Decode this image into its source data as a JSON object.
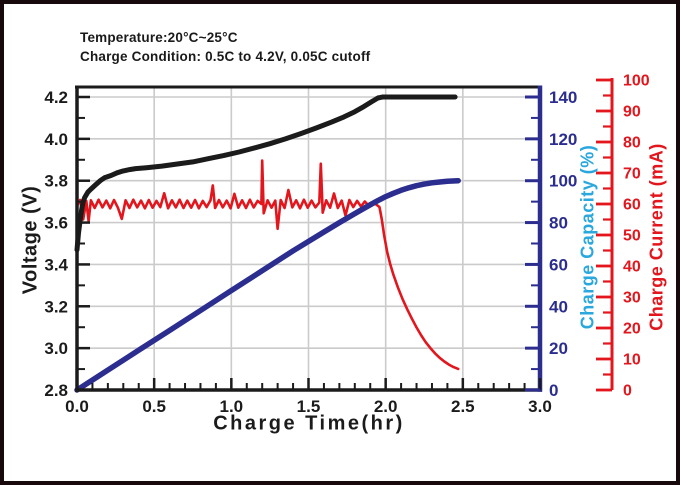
{
  "colors": {
    "black": "#1b1b1b",
    "navy": "#2b2e8f",
    "red": "#e2161c",
    "cyan": "#2aa7dd",
    "grid": "#cbcbcb",
    "background": "#ffffff",
    "frame": "#17090c"
  },
  "header": {
    "line1": "Temperature:20°C~25°C",
    "line2": "Charge Condition: 0.5C to 4.2V, 0.05C cutoff"
  },
  "chart_data": {
    "type": "line",
    "grid": "on",
    "legend": "none",
    "axes": {
      "x": {
        "title": "Charge Time(hr)",
        "min": 0,
        "max": 3,
        "ticks": [
          0,
          0.5,
          1,
          1.5,
          2,
          2.5,
          3
        ],
        "tick_labels": [
          "0.0",
          "0.5",
          "1.0",
          "1.5",
          "2.0",
          "2.5",
          "3.0"
        ],
        "minor_step": 0.1,
        "gridlines": [
          0.5,
          1,
          1.5,
          2,
          2.5
        ]
      },
      "voltage": {
        "title": "Voltage (V)",
        "side": "left",
        "min": 2.8,
        "max": 4.2,
        "ticks": [
          2.8,
          3,
          3.2,
          3.4,
          3.6,
          3.8,
          4,
          4.2
        ],
        "tick_labels": [
          "2.8",
          "3.0",
          "3.2",
          "3.4",
          "3.6",
          "3.8",
          "4.0",
          "4.2"
        ],
        "minor_step": 0.1,
        "gridlines": [
          3,
          3.2,
          3.4,
          3.6,
          3.8,
          4,
          4.2
        ]
      },
      "capacity": {
        "title": "Charge Capacity (%)",
        "side": "right",
        "min": 0,
        "max": 140,
        "ticks": [
          0,
          20,
          40,
          60,
          80,
          100,
          120,
          140
        ],
        "tick_labels": [
          "0",
          "20",
          "40",
          "60",
          "80",
          "100",
          "120",
          "140"
        ],
        "minor_step": 10
      },
      "current": {
        "title": "Charge Current (mA)",
        "side": "far-right",
        "min": 0,
        "max": 100,
        "ticks": [
          0,
          10,
          20,
          30,
          40,
          50,
          60,
          70,
          80,
          90,
          100
        ],
        "tick_labels": [
          "0",
          "10",
          "20",
          "30",
          "40",
          "50",
          "60",
          "70",
          "80",
          "90",
          "100"
        ],
        "minor_step": 5
      }
    },
    "series": [
      {
        "id": "current-curve",
        "name": "Charge Current",
        "axis": "current",
        "color": "red",
        "width": 2.6,
        "points": [
          [
            0,
            59.5
          ],
          [
            0.02,
            61.3
          ],
          [
            0.04,
            55
          ],
          [
            0.06,
            61
          ],
          [
            0.075,
            54.5
          ],
          [
            0.09,
            61.2
          ],
          [
            0.115,
            58.7
          ],
          [
            0.14,
            61.4
          ],
          [
            0.165,
            58.9
          ],
          [
            0.19,
            61.1
          ],
          [
            0.215,
            58.6
          ],
          [
            0.24,
            61.3
          ],
          [
            0.265,
            58.8
          ],
          [
            0.29,
            55.2
          ],
          [
            0.315,
            61.2
          ],
          [
            0.34,
            58.7
          ],
          [
            0.365,
            61.4
          ],
          [
            0.39,
            58.9
          ],
          [
            0.415,
            61.1
          ],
          [
            0.44,
            58.6
          ],
          [
            0.465,
            61.3
          ],
          [
            0.49,
            58.8
          ],
          [
            0.515,
            61
          ],
          [
            0.54,
            59
          ],
          [
            0.565,
            63.5
          ],
          [
            0.59,
            58.6
          ],
          [
            0.615,
            61.2
          ],
          [
            0.64,
            58.9
          ],
          [
            0.665,
            61.4
          ],
          [
            0.69,
            58.7
          ],
          [
            0.715,
            61.1
          ],
          [
            0.74,
            58.8
          ],
          [
            0.765,
            61.3
          ],
          [
            0.79,
            58.6
          ],
          [
            0.815,
            61
          ],
          [
            0.84,
            59
          ],
          [
            0.865,
            61.2
          ],
          [
            0.88,
            66
          ],
          [
            0.895,
            58.7
          ],
          [
            0.92,
            61.3
          ],
          [
            0.945,
            58.9
          ],
          [
            0.97,
            61.1
          ],
          [
            0.995,
            58.6
          ],
          [
            1.02,
            63.3
          ],
          [
            1.045,
            58.8
          ],
          [
            1.07,
            61.2
          ],
          [
            1.095,
            58.7
          ],
          [
            1.12,
            61.4
          ],
          [
            1.145,
            58.9
          ],
          [
            1.17,
            61
          ],
          [
            1.195,
            60
          ],
          [
            1.2,
            74
          ],
          [
            1.21,
            57
          ],
          [
            1.235,
            61.2
          ],
          [
            1.26,
            58.8
          ],
          [
            1.285,
            61.1
          ],
          [
            1.3,
            52
          ],
          [
            1.32,
            61.3
          ],
          [
            1.345,
            58.7
          ],
          [
            1.37,
            64.5
          ],
          [
            1.395,
            58.9
          ],
          [
            1.42,
            61.2
          ],
          [
            1.445,
            58.6
          ],
          [
            1.47,
            61.4
          ],
          [
            1.495,
            58.8
          ],
          [
            1.52,
            61.1
          ],
          [
            1.545,
            58.9
          ],
          [
            1.57,
            60.5
          ],
          [
            1.58,
            73
          ],
          [
            1.592,
            57.2
          ],
          [
            1.615,
            61.2
          ],
          [
            1.64,
            58.8
          ],
          [
            1.665,
            63.4
          ],
          [
            1.69,
            58.7
          ],
          [
            1.715,
            61.1
          ],
          [
            1.74,
            56.3
          ],
          [
            1.765,
            61.3
          ],
          [
            1.79,
            59
          ],
          [
            1.815,
            61
          ],
          [
            1.84,
            59.2
          ],
          [
            1.865,
            60.8
          ],
          [
            1.89,
            59.5
          ],
          [
            1.915,
            60.4
          ],
          [
            1.94,
            59.8
          ],
          [
            1.96,
            59
          ],
          [
            1.975,
            55
          ],
          [
            1.99,
            50
          ],
          [
            2.01,
            44.5
          ],
          [
            2.03,
            40.5
          ],
          [
            2.05,
            37.2
          ],
          [
            2.08,
            33
          ],
          [
            2.11,
            29.3
          ],
          [
            2.14,
            26
          ],
          [
            2.17,
            23
          ],
          [
            2.2,
            20.2
          ],
          [
            2.23,
            17.6
          ],
          [
            2.26,
            15.4
          ],
          [
            2.29,
            13.5
          ],
          [
            2.32,
            11.8
          ],
          [
            2.35,
            10.4
          ],
          [
            2.38,
            9.2
          ],
          [
            2.41,
            8.2
          ],
          [
            2.44,
            7.4
          ],
          [
            2.47,
            6.8
          ]
        ]
      },
      {
        "id": "capacity-curve",
        "name": "Charge Capacity",
        "axis": "capacity",
        "color": "navy",
        "width": 5.5,
        "points": [
          [
            0,
            0
          ],
          [
            0.2,
            9.5
          ],
          [
            0.4,
            19
          ],
          [
            0.6,
            28.5
          ],
          [
            0.8,
            38
          ],
          [
            1,
            47.5
          ],
          [
            1.2,
            57
          ],
          [
            1.4,
            66.5
          ],
          [
            1.6,
            75.5
          ],
          [
            1.7,
            80
          ],
          [
            1.8,
            84.3
          ],
          [
            1.85,
            86.4
          ],
          [
            1.9,
            88.5
          ],
          [
            1.95,
            90.5
          ],
          [
            2,
            92.4
          ],
          [
            2.05,
            94
          ],
          [
            2.1,
            95.4
          ],
          [
            2.15,
            96.6
          ],
          [
            2.2,
            97.6
          ],
          [
            2.25,
            98.4
          ],
          [
            2.3,
            99
          ],
          [
            2.35,
            99.4
          ],
          [
            2.4,
            99.7
          ],
          [
            2.45,
            99.9
          ],
          [
            2.47,
            100
          ]
        ]
      },
      {
        "id": "voltage-curve",
        "name": "Voltage",
        "axis": "voltage",
        "color": "black",
        "width": 5,
        "points": [
          [
            0,
            3.47
          ],
          [
            0.01,
            3.55
          ],
          [
            0.02,
            3.61
          ],
          [
            0.03,
            3.66
          ],
          [
            0.04,
            3.7
          ],
          [
            0.05,
            3.72
          ],
          [
            0.07,
            3.745
          ],
          [
            0.09,
            3.76
          ],
          [
            0.12,
            3.78
          ],
          [
            0.15,
            3.8
          ],
          [
            0.18,
            3.815
          ],
          [
            0.22,
            3.825
          ],
          [
            0.26,
            3.838
          ],
          [
            0.3,
            3.847
          ],
          [
            0.34,
            3.853
          ],
          [
            0.38,
            3.858
          ],
          [
            0.45,
            3.862
          ],
          [
            0.55,
            3.87
          ],
          [
            0.65,
            3.88
          ],
          [
            0.75,
            3.89
          ],
          [
            0.85,
            3.905
          ],
          [
            0.95,
            3.92
          ],
          [
            1.05,
            3.937
          ],
          [
            1.15,
            3.957
          ],
          [
            1.25,
            3.977
          ],
          [
            1.35,
            4
          ],
          [
            1.45,
            4.025
          ],
          [
            1.55,
            4.052
          ],
          [
            1.65,
            4.08
          ],
          [
            1.73,
            4.105
          ],
          [
            1.8,
            4.13
          ],
          [
            1.86,
            4.155
          ],
          [
            1.91,
            4.178
          ],
          [
            1.95,
            4.195
          ],
          [
            1.98,
            4.2
          ],
          [
            2.45,
            4.2
          ]
        ]
      }
    ]
  }
}
